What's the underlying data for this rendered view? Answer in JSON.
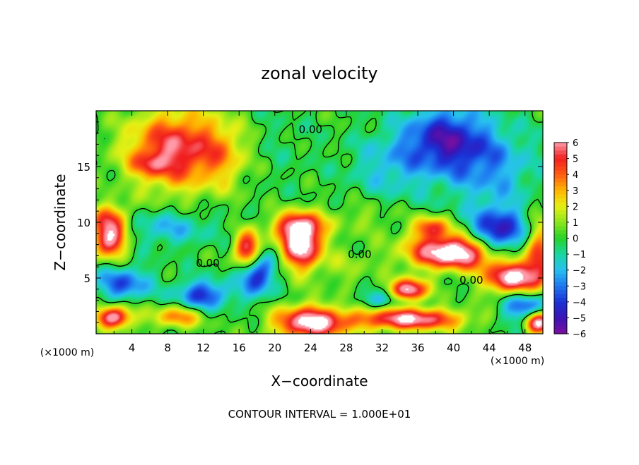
{
  "chart_data": {
    "type": "heatmap",
    "title": "zonal velocity",
    "xlabel": "X−coordinate",
    "ylabel": "Z−coordinate",
    "x_unit_label": "(×1000 m)",
    "y_unit_label": "(×1000 m)",
    "footer": "CONTOUR INTERVAL = 1.000E+01",
    "xlim": [
      0,
      50
    ],
    "ylim": [
      0,
      20
    ],
    "x_ticks": [
      4,
      8,
      12,
      16,
      20,
      24,
      28,
      32,
      36,
      40,
      44,
      48
    ],
    "x_tick_labels": [
      "4",
      "8",
      "12",
      "16",
      "20",
      "24",
      "28",
      "32",
      "36",
      "40",
      "44",
      "48"
    ],
    "y_ticks": [
      5,
      10,
      15
    ],
    "y_tick_labels": [
      "5",
      "10",
      "15"
    ],
    "contour_labels": [
      {
        "text": "0.00",
        "x": 29.5,
        "y": 6.8
      },
      {
        "text": "0.00",
        "x": 42.0,
        "y": 4.5
      },
      {
        "text": "0.00",
        "x": 12.5,
        "y": 6.0
      },
      {
        "text": "0.00",
        "x": 24.0,
        "y": 18.0
      }
    ],
    "colorbar": {
      "min": -6,
      "max": 6,
      "tick_labels": [
        "6",
        "5",
        "4",
        "3",
        "2",
        "1",
        "0",
        "−1",
        "−2",
        "−3",
        "−4",
        "−5",
        "−6"
      ],
      "stops": [
        {
          "value": -6,
          "color": "#7a0fa0"
        },
        {
          "value": -5,
          "color": "#3b14b4"
        },
        {
          "value": -4,
          "color": "#1a32d6"
        },
        {
          "value": -3,
          "color": "#1e78f0"
        },
        {
          "value": -2,
          "color": "#28c0f0"
        },
        {
          "value": -1,
          "color": "#19d7a0"
        },
        {
          "value": 0,
          "color": "#28d228"
        },
        {
          "value": 1,
          "color": "#8ce61e"
        },
        {
          "value": 2,
          "color": "#e6f014"
        },
        {
          "value": 3,
          "color": "#ffb400"
        },
        {
          "value": 4,
          "color": "#ff5a14"
        },
        {
          "value": 5,
          "color": "#f01e1e"
        },
        {
          "value": 6,
          "color": "#ff9aa8"
        }
      ],
      "over_color": "#ffffff",
      "under_color": "#ffffff"
    },
    "features": [
      {
        "x": 9,
        "y": 16.5,
        "sx": 5.5,
        "sy": 3.5,
        "a": 5.6
      },
      {
        "x": 6,
        "y": 15.2,
        "sx": 2.0,
        "sy": 1.0,
        "a": 2.0
      },
      {
        "x": 14.5,
        "y": 16,
        "sx": 2.5,
        "sy": 3,
        "a": 1.5
      },
      {
        "x": 20,
        "y": 17,
        "sx": 4,
        "sy": 4,
        "a": -0.4
      },
      {
        "x": 39,
        "y": 17.5,
        "sx": 4.5,
        "sy": 2.8,
        "a": -4.5
      },
      {
        "x": 44,
        "y": 15,
        "sx": 5,
        "sy": 3.5,
        "a": -2.5
      },
      {
        "x": 33,
        "y": 15,
        "sx": 4.5,
        "sy": 3,
        "a": -1.8
      },
      {
        "x": 1.5,
        "y": 8.5,
        "sx": 2.0,
        "sy": 1.6,
        "a": 6.5
      },
      {
        "x": 1.5,
        "y": 10.5,
        "sx": 2.2,
        "sy": 1.2,
        "a": 3.5
      },
      {
        "x": 8,
        "y": 9.5,
        "sx": 5,
        "sy": 1.6,
        "a": -2.0
      },
      {
        "x": 17,
        "y": 7.5,
        "sx": 1.5,
        "sy": 1.6,
        "a": 6.5
      },
      {
        "x": 23,
        "y": 8.0,
        "sx": 2.2,
        "sy": 2.2,
        "a": 7.5
      },
      {
        "x": 22.5,
        "y": 9.7,
        "sx": 3,
        "sy": 1.2,
        "a": 4.0
      },
      {
        "x": 18,
        "y": 5.5,
        "sx": 1.8,
        "sy": 2.0,
        "a": -5.0
      },
      {
        "x": 12,
        "y": 3.5,
        "sx": 3,
        "sy": 1.3,
        "a": -4.0
      },
      {
        "x": 3,
        "y": 4.5,
        "sx": 3,
        "sy": 1.5,
        "a": -3.5
      },
      {
        "x": 2,
        "y": 1.5,
        "sx": 2,
        "sy": 1.0,
        "a": 6.5
      },
      {
        "x": 9,
        "y": 1.5,
        "sx": 3,
        "sy": 1.0,
        "a": 3.5
      },
      {
        "x": 24,
        "y": 1.0,
        "sx": 4,
        "sy": 1.5,
        "a": 7.0
      },
      {
        "x": 32,
        "y": 3.0,
        "sx": 3,
        "sy": 0.8,
        "a": -2.0
      },
      {
        "x": 35,
        "y": 3.9,
        "sx": 2,
        "sy": 1.0,
        "a": 7.0
      },
      {
        "x": 35,
        "y": 1.3,
        "sx": 6,
        "sy": 1.0,
        "a": 6.5
      },
      {
        "x": 40,
        "y": 7.3,
        "sx": 5,
        "sy": 1.5,
        "a": 8.0
      },
      {
        "x": 37.5,
        "y": 9.5,
        "sx": 2,
        "sy": 1.0,
        "a": 4.5
      },
      {
        "x": 45,
        "y": 9,
        "sx": 3,
        "sy": 2.2,
        "a": -5.2
      },
      {
        "x": 46.5,
        "y": 5.0,
        "sx": 3,
        "sy": 1.5,
        "a": 7.0
      },
      {
        "x": 49.5,
        "y": 7.0,
        "sx": 1.5,
        "sy": 3.0,
        "a": 4.5
      },
      {
        "x": 48,
        "y": 2.5,
        "sx": 2.5,
        "sy": 1.5,
        "a": -4.0
      },
      {
        "x": 49.5,
        "y": 1.0,
        "sx": 1.5,
        "sy": 1.0,
        "a": 7.0
      },
      {
        "x": 28,
        "y": 6.0,
        "sx": 3,
        "sy": 2.0,
        "a": 1.0
      },
      {
        "x": 30,
        "y": 10.5,
        "sx": 4,
        "sy": 1.5,
        "a": 1.0
      }
    ]
  }
}
